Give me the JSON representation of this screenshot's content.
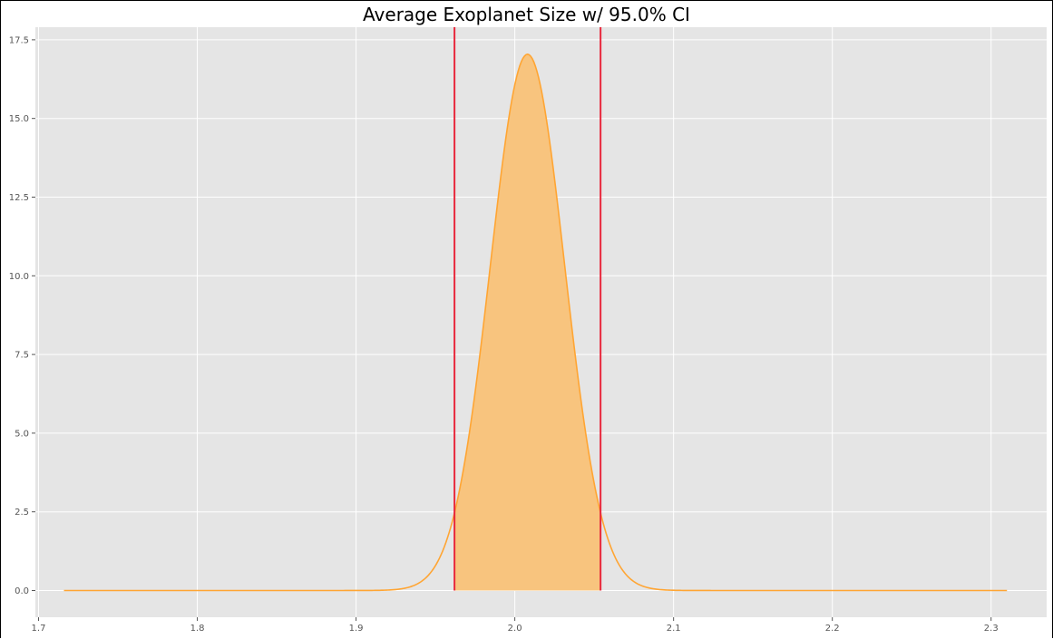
{
  "chart_data": {
    "type": "area",
    "title": "Average Exoplanet Size w/ 95.0% CI",
    "xlabel": "",
    "ylabel": "",
    "xlim": [
      1.698,
      2.335
    ],
    "ylim": [
      -0.85,
      17.9
    ],
    "x_ticks": [
      1.7,
      1.8,
      1.9,
      2.0,
      2.1,
      2.2,
      2.3
    ],
    "x_tick_labels": [
      "1.7",
      "1.8",
      "1.9",
      "2.0",
      "2.1",
      "2.2",
      "2.3"
    ],
    "y_ticks": [
      0.0,
      2.5,
      5.0,
      7.5,
      10.0,
      12.5,
      15.0,
      17.5
    ],
    "y_tick_labels": [
      "0.0",
      "2.5",
      "5.0",
      "7.5",
      "10.0",
      "12.5",
      "15.0",
      "17.5"
    ],
    "grid": true,
    "series": [
      {
        "kind": "density-curve",
        "distribution": "normal",
        "mean": 2.008,
        "std": 0.0234,
        "peak": 17.04,
        "x_range": [
          1.716,
          2.31
        ],
        "color": "#ffa533"
      }
    ],
    "confidence_interval": {
      "level": 0.95,
      "lower": 1.962,
      "upper": 2.054,
      "fill_color": "#f8c47e",
      "line_color": "#e8283c"
    },
    "style": {
      "background": "#e5e5e5",
      "grid_color": "#ffffff"
    }
  }
}
